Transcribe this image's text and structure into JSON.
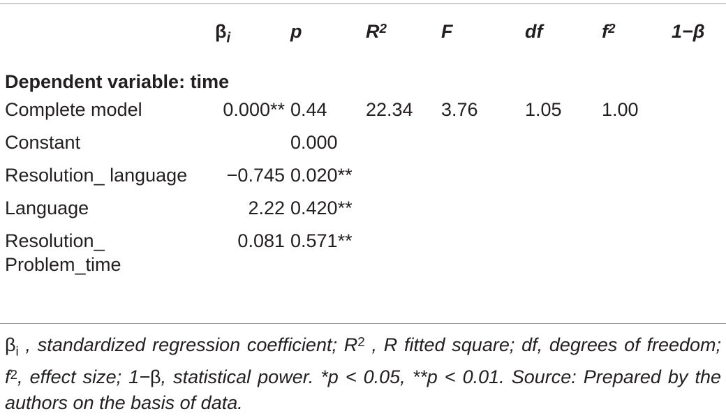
{
  "table": {
    "headers": [
      "",
      "βi",
      "p",
      "R2",
      "F",
      "df",
      "f2",
      "1−β"
    ],
    "header_parts": {
      "beta_main": "β",
      "beta_sub": "i",
      "p": "p",
      "r_main": "R",
      "r_sup": "2",
      "f": "F",
      "df": "df",
      "f2_main": "f",
      "f2_sup": "2",
      "power": "1−β"
    },
    "section_title": "Dependent variable: time",
    "rows": [
      {
        "label": "Complete model",
        "beta": "0.000**",
        "p": "0.44",
        "r2": "22.34",
        "f": "3.76",
        "df": "1.05",
        "f2": "1.00",
        "power": ""
      },
      {
        "label": "Constant",
        "beta": "",
        "p": "0.000",
        "r2": "",
        "f": "",
        "df": "",
        "f2": "",
        "power": ""
      },
      {
        "label": "Resolution_ language",
        "beta": "−0.745",
        "p": "0.020**",
        "r2": "",
        "f": "",
        "df": "",
        "f2": "",
        "power": ""
      },
      {
        "label": "Language",
        "beta": "2.22",
        "p": "0.420**",
        "r2": "",
        "f": "",
        "df": "",
        "f2": "",
        "power": ""
      },
      {
        "label": "Resolution_ Problem_time",
        "beta": "0.081",
        "p": "0.571**",
        "r2": "",
        "f": "",
        "df": "",
        "f2": "",
        "power": ""
      }
    ]
  },
  "footnote": {
    "beta_symbol": "β",
    "beta_sub": "i",
    "part1": " , standardized regression coefficient; ",
    "r_main": "R",
    "r_sup": "2",
    "part2": " , R fitted square; df, degrees of freedom; ",
    "f_main": "f",
    "f_sup": "2",
    "part3": ", effect size; 1−",
    "beta2": "β",
    "part4": ", statistical power. *p < 0.05, **p < 0.01. Source: Prepared by the authors on the basis of data."
  }
}
